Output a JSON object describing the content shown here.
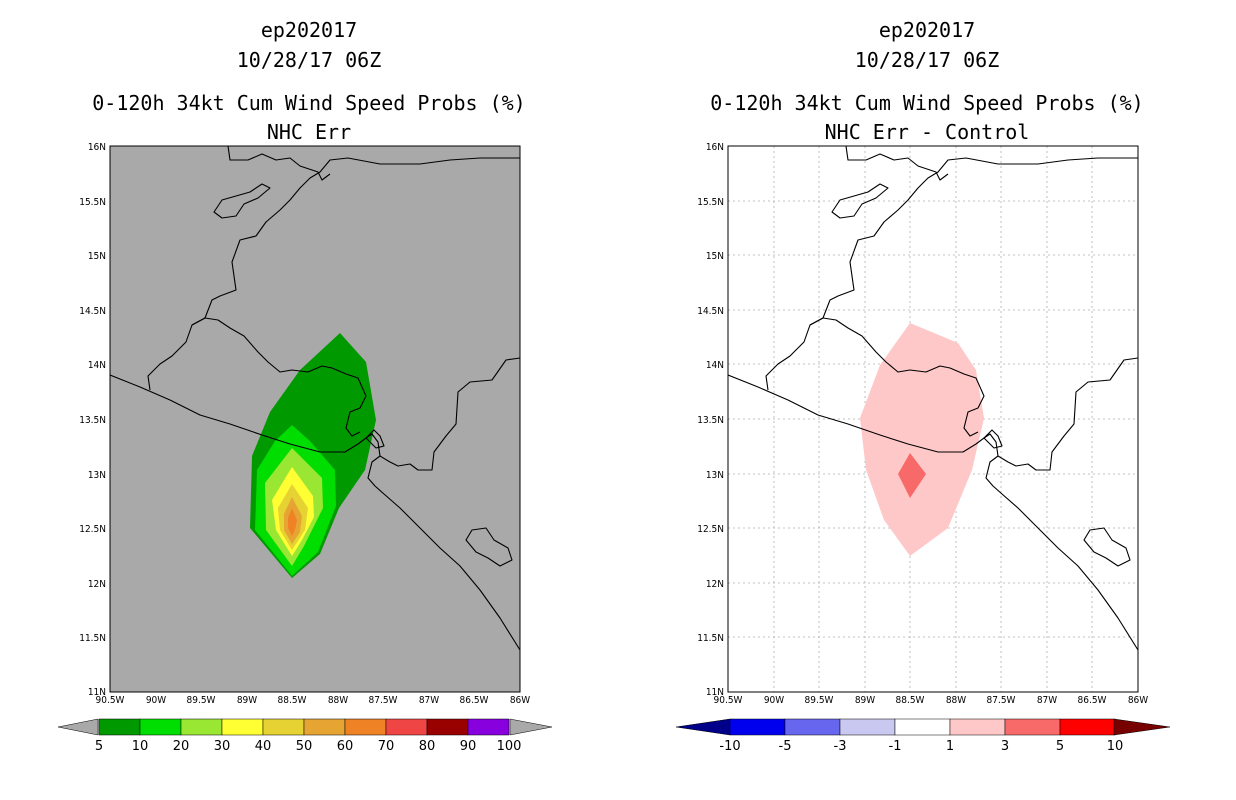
{
  "panels": [
    {
      "id": "left",
      "title1": "ep202017",
      "title2": "10/28/17 06Z",
      "title3": "0-120h 34kt Cum Wind Speed Probs (%)",
      "title4": "NHC Err",
      "background": "#a9a9a9",
      "colorbar": {
        "colors": [
          "#009900",
          "#00dd00",
          "#99e633",
          "#ffff33",
          "#e6d233",
          "#e6a533",
          "#ef8224",
          "#f04545",
          "#990000",
          "#8800dd"
        ],
        "under_color": "#a9a9a9",
        "over_color": "#a9a9a9",
        "labels": [
          "5",
          "10",
          "20",
          "30",
          "40",
          "50",
          "60",
          "70",
          "80",
          "90",
          "100"
        ]
      }
    },
    {
      "id": "right",
      "title1": "ep202017",
      "title2": "10/28/17 06Z",
      "title3": "0-120h 34kt Cum Wind Speed Probs (%)",
      "title4": "NHC Err - Control",
      "background": "#ffffff",
      "colorbar": {
        "colors": [
          "#0000ee",
          "#6666ee",
          "#c8c8f0",
          "#ffffff",
          "#ffc8c8",
          "#f86a6a",
          "#ff0000"
        ],
        "under_color": "#000088",
        "over_color": "#770000",
        "labels": [
          "-10",
          "-5",
          "-3",
          "-1",
          "1",
          "3",
          "5",
          "10"
        ]
      }
    }
  ],
  "axes": {
    "lon_labels": [
      "90.5W",
      "90W",
      "89.5W",
      "89W",
      "88.5W",
      "88W",
      "87.5W",
      "87W",
      "86.5W",
      "86W"
    ],
    "lat_labels": [
      "16N",
      "15.5N",
      "15N",
      "14.5N",
      "14N",
      "13.5N",
      "13N",
      "12.5N",
      "12N",
      "11.5N",
      "11N"
    ],
    "lon_range": [
      -90.5,
      -86.0
    ],
    "lat_range": [
      11.0,
      16.0
    ]
  },
  "map_layers": [
    {
      "name": "coastline-and-borders",
      "type": "line",
      "color": "#000000"
    },
    {
      "name": "wind-probability-contours",
      "type": "filled-contour"
    }
  ]
}
